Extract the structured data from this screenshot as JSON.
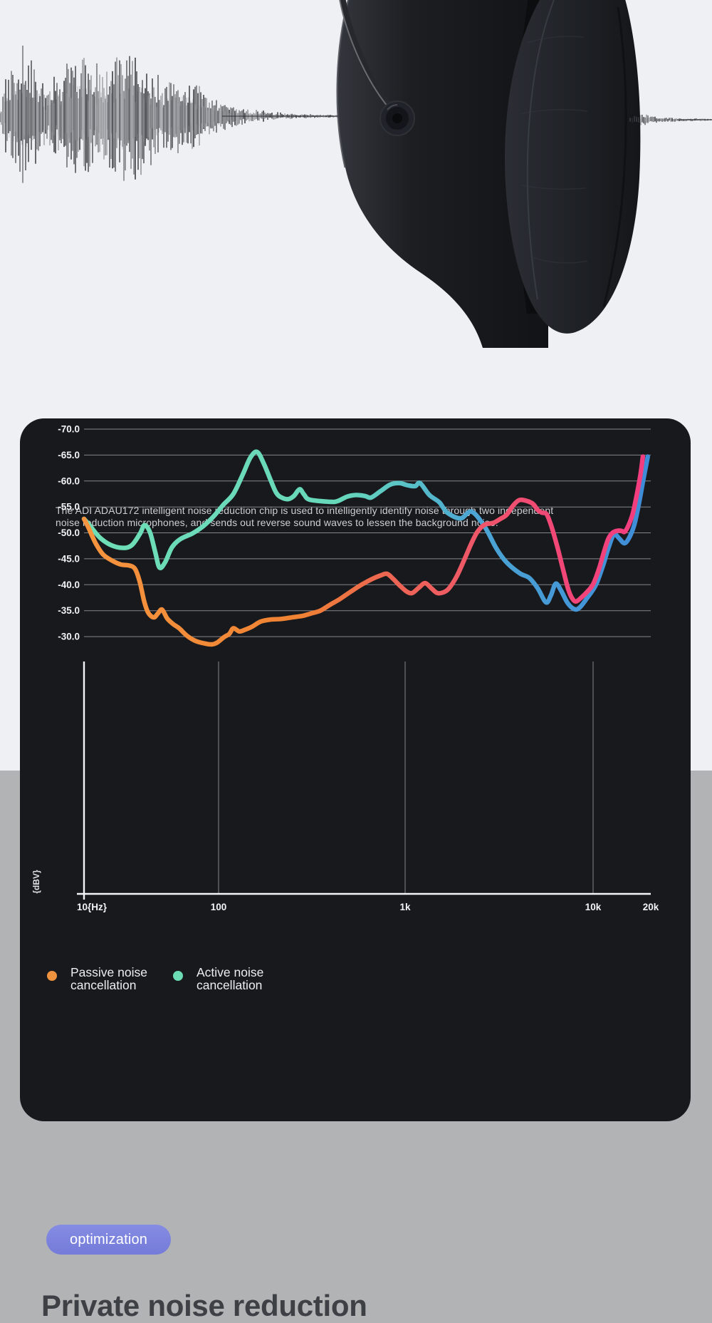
{
  "hero": {
    "waveform_left_envelope": [
      [
        0,
        12
      ],
      [
        15,
        70
      ],
      [
        30,
        88
      ],
      [
        50,
        75
      ],
      [
        65,
        35
      ],
      [
        80,
        55
      ],
      [
        95,
        80
      ],
      [
        125,
        85
      ],
      [
        140,
        60
      ],
      [
        170,
        88
      ],
      [
        200,
        80
      ],
      [
        215,
        55
      ],
      [
        230,
        45
      ],
      [
        245,
        55
      ],
      [
        275,
        45
      ],
      [
        290,
        30
      ],
      [
        320,
        18
      ],
      [
        350,
        9
      ],
      [
        380,
        5
      ],
      [
        430,
        2.5
      ],
      [
        520,
        1.5
      ]
    ],
    "waveform_right_envelope": [
      [
        0,
        4
      ],
      [
        6,
        10
      ],
      [
        14,
        7
      ],
      [
        22,
        8
      ],
      [
        30,
        5
      ],
      [
        40,
        4
      ],
      [
        55,
        3
      ],
      [
        70,
        2.5
      ],
      [
        90,
        1.8
      ],
      [
        116,
        1.2
      ]
    ]
  },
  "card": {
    "description_line1": "The ADI ADAU172 intelligent noise reduction chip is used to intelligently identify noise through two independent",
    "description_line2": "noise reduction microphones, and sends out reverse sound waves to lessen the background noise."
  },
  "chart_data": {
    "type": "line",
    "title": "",
    "ylabel": "{dBV}",
    "x_scale": "log-piecewise",
    "x_range_hz": [
      10,
      20000
    ],
    "y_range_db": [
      -70,
      -25.2
    ],
    "grid": true,
    "x_ticks": [
      "10{Hz}",
      "100",
      "1k",
      "10k",
      "20k"
    ],
    "x_tick_hz": [
      10,
      100,
      1000,
      10000,
      20000
    ],
    "y_ticks": [
      "-30.0",
      "-35.0",
      "-40.0",
      "-45.0",
      "-50.0",
      "-55.0",
      "-60.0",
      "-65.0",
      "-70.0"
    ],
    "y_tick_db": [
      -30,
      -35,
      -40,
      -45,
      -50,
      -55,
      -60,
      -65,
      -70
    ],
    "x_gridlines_hz": [
      100,
      1000,
      10000
    ],
    "legend": [
      {
        "line1": "Passive noise",
        "line2": "cancellation",
        "color": "#f0933f"
      },
      {
        "line1": "Active noise",
        "line2": "cancellation",
        "color": "#6bdcb4"
      }
    ],
    "series": [
      {
        "name": "Passive noise cancellation",
        "gradient": [
          [
            0,
            "#f6953f"
          ],
          [
            0.38,
            "#ef8233"
          ],
          [
            0.52,
            "#ec684f"
          ],
          [
            0.66,
            "#ee5a64"
          ],
          [
            0.8,
            "#f14a75"
          ],
          [
            1,
            "#f23c80"
          ]
        ],
        "points": [
          [
            10,
            -52.7
          ],
          [
            10.8,
            -51
          ],
          [
            12.2,
            -48
          ],
          [
            13.9,
            -45.8
          ],
          [
            16.3,
            -44.6
          ],
          [
            18.8,
            -43.9
          ],
          [
            21.8,
            -43.7
          ],
          [
            24,
            -43
          ],
          [
            26,
            -40.5
          ],
          [
            28,
            -36.8
          ],
          [
            30,
            -34.6
          ],
          [
            33,
            -33.7
          ],
          [
            35.5,
            -34.5
          ],
          [
            38,
            -35.2
          ],
          [
            41.5,
            -33.5
          ],
          [
            46,
            -32.4
          ],
          [
            51,
            -31.6
          ],
          [
            58,
            -30.2
          ],
          [
            67,
            -29.2
          ],
          [
            78,
            -28.7
          ],
          [
            89,
            -28.5
          ],
          [
            97,
            -28.8
          ],
          [
            107,
            -29.9
          ],
          [
            114,
            -30.5
          ],
          [
            120,
            -31.6
          ],
          [
            129,
            -31
          ],
          [
            138,
            -31.3
          ],
          [
            151,
            -31.9
          ],
          [
            168,
            -32.9
          ],
          [
            190,
            -33.3
          ],
          [
            216,
            -33.4
          ],
          [
            247,
            -33.7
          ],
          [
            282,
            -34
          ],
          [
            316,
            -34.5
          ],
          [
            351,
            -35
          ],
          [
            394,
            -36.1
          ],
          [
            445,
            -37.2
          ],
          [
            508,
            -38.6
          ],
          [
            584,
            -40
          ],
          [
            665,
            -41.1
          ],
          [
            740,
            -41.8
          ],
          [
            800,
            -42.1
          ],
          [
            865,
            -41.1
          ],
          [
            932,
            -39.9
          ],
          [
            1018,
            -38.7
          ],
          [
            1090,
            -38.4
          ],
          [
            1180,
            -39.4
          ],
          [
            1277,
            -40.3
          ],
          [
            1381,
            -39.3
          ],
          [
            1481,
            -38.4
          ],
          [
            1588,
            -38.5
          ],
          [
            1703,
            -39.2
          ],
          [
            1874,
            -41.5
          ],
          [
            2063,
            -44.8
          ],
          [
            2247,
            -47.9
          ],
          [
            2434,
            -50.3
          ],
          [
            2656,
            -51.6
          ],
          [
            2936,
            -51.9
          ],
          [
            3216,
            -52.7
          ],
          [
            3469,
            -53.5
          ],
          [
            3742,
            -55.2
          ],
          [
            4037,
            -56.3
          ],
          [
            4395,
            -56.2
          ],
          [
            4785,
            -55.6
          ],
          [
            5078,
            -54.4
          ],
          [
            5340,
            -53.9
          ],
          [
            5659,
            -53.6
          ],
          [
            5996,
            -51.3
          ],
          [
            6452,
            -47.3
          ],
          [
            6941,
            -42.8
          ],
          [
            7392,
            -39
          ],
          [
            7800,
            -37.2
          ],
          [
            8150,
            -36.8
          ],
          [
            8700,
            -37.6
          ],
          [
            9280,
            -38.6
          ],
          [
            10000,
            -40.1
          ],
          [
            10718,
            -43
          ],
          [
            11390,
            -46.3
          ],
          [
            11990,
            -48.8
          ],
          [
            12620,
            -50
          ],
          [
            13370,
            -50.4
          ],
          [
            14040,
            -50.4
          ],
          [
            14600,
            -50.2
          ],
          [
            15290,
            -51.4
          ],
          [
            16100,
            -53.7
          ],
          [
            16940,
            -57.5
          ],
          [
            17680,
            -61.3
          ],
          [
            18180,
            -64.7
          ]
        ]
      },
      {
        "name": "Active noise cancellation",
        "gradient": [
          [
            0,
            "#6fdfb6"
          ],
          [
            0.45,
            "#67d7ba"
          ],
          [
            0.56,
            "#5ac4c6"
          ],
          [
            0.68,
            "#4ca6d3"
          ],
          [
            1,
            "#3e8bd8"
          ]
        ],
        "points": [
          [
            10,
            -52.7
          ],
          [
            11.2,
            -51.2
          ],
          [
            13.1,
            -49.1
          ],
          [
            15.7,
            -47.7
          ],
          [
            19.3,
            -47.1
          ],
          [
            22.6,
            -47.6
          ],
          [
            26,
            -49.8
          ],
          [
            28.2,
            -51.5
          ],
          [
            31,
            -50
          ],
          [
            33.8,
            -46.3
          ],
          [
            36.4,
            -43.3
          ],
          [
            40,
            -44.3
          ],
          [
            45,
            -47.2
          ],
          [
            52,
            -48.8
          ],
          [
            64,
            -49.9
          ],
          [
            77,
            -51.3
          ],
          [
            92,
            -53.2
          ],
          [
            106,
            -55.4
          ],
          [
            120,
            -57.5
          ],
          [
            135,
            -61.3
          ],
          [
            148,
            -64.5
          ],
          [
            161,
            -65.6
          ],
          [
            175,
            -63.3
          ],
          [
            190,
            -60.2
          ],
          [
            204,
            -57.7
          ],
          [
            218,
            -56.8
          ],
          [
            236,
            -56.5
          ],
          [
            253,
            -57.1
          ],
          [
            272,
            -58.4
          ],
          [
            287,
            -57.4
          ],
          [
            308,
            -56.4
          ],
          [
            394,
            -56
          ],
          [
            433,
            -56.1
          ],
          [
            490,
            -57
          ],
          [
            549,
            -57.3
          ],
          [
            611,
            -57.1
          ],
          [
            656,
            -56.8
          ],
          [
            736,
            -58
          ],
          [
            831,
            -59.3
          ],
          [
            931,
            -59.6
          ],
          [
            1026,
            -59.2
          ],
          [
            1130,
            -59
          ],
          [
            1201,
            -59.6
          ],
          [
            1345,
            -57.3
          ],
          [
            1520,
            -55.9
          ],
          [
            1674,
            -53.9
          ],
          [
            1974,
            -52.8
          ],
          [
            2256,
            -54.1
          ],
          [
            2650,
            -51.2
          ],
          [
            3058,
            -47
          ],
          [
            3469,
            -44.3
          ],
          [
            4075,
            -42.2
          ],
          [
            4578,
            -41.3
          ],
          [
            5078,
            -39.3
          ],
          [
            5620,
            -36.6
          ],
          [
            5970,
            -38
          ],
          [
            6330,
            -40.2
          ],
          [
            6750,
            -38.9
          ],
          [
            7310,
            -36.5
          ],
          [
            7940,
            -35.3
          ],
          [
            8490,
            -35.6
          ],
          [
            9280,
            -37.4
          ],
          [
            10350,
            -40
          ],
          [
            11290,
            -43.8
          ],
          [
            12100,
            -47.4
          ],
          [
            12870,
            -49.7
          ],
          [
            13700,
            -48.9
          ],
          [
            14600,
            -48
          ],
          [
            15500,
            -49.2
          ],
          [
            16420,
            -51.6
          ],
          [
            17380,
            -55.8
          ],
          [
            18300,
            -60.3
          ],
          [
            19300,
            -64.7
          ]
        ]
      }
    ]
  },
  "footer": {
    "badge": "optimization",
    "heading": "Private noise reduction"
  },
  "colors": {
    "page_top_bg": "#eef0f4",
    "page_bottom_bg": "#b1b3b5",
    "card_bg": "#18191d",
    "axis": "#f4f5f7",
    "gridline": "#84868b",
    "axis_label": "#f2f3f5",
    "description_text": "#cdced3",
    "legend_text": "#eceef0",
    "badge_bg": "#7b82de",
    "badge_text": "#ffffff",
    "heading_text": "#3d4045"
  }
}
